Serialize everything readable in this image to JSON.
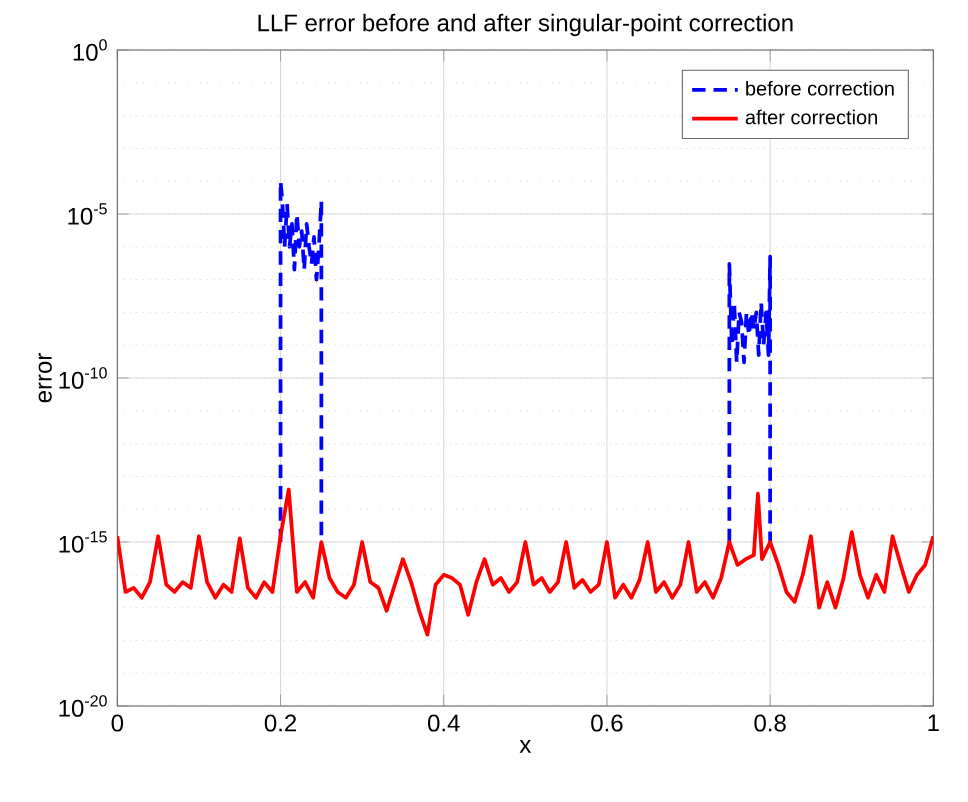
{
  "chart_data": {
    "type": "line",
    "title": "LLF error before and after singular-point correction",
    "xlabel": "x",
    "ylabel": "error",
    "log": "y",
    "grid": true,
    "legend": "top right",
    "xlim": [
      0,
      1
    ],
    "ylim": [
      1e-20,
      1
    ],
    "xticks": [
      0,
      0.2,
      0.4,
      0.6,
      0.8,
      1
    ],
    "yticks": [
      {
        "value": 1e-20,
        "label": "10$^{-20}$"
      },
      {
        "value": 1e-15,
        "label": "10$^{-15}$"
      },
      {
        "value": 1e-10,
        "label": "10$^{-10}$"
      },
      {
        "value": 1e-05,
        "label": "10$^{-5}$"
      },
      {
        "value": 1,
        "label": "10$^{0}$"
      }
    ],
    "series": [
      {
        "name": "before correction",
        "color": "#0000ff",
        "line_style": "dashed",
        "x": [
          0.2,
          0.2,
          0.202,
          0.205,
          0.208,
          0.211,
          0.214,
          0.217,
          0.22,
          0.223,
          0.226,
          0.229,
          0.232,
          0.235,
          0.238,
          0.241,
          0.244,
          0.247,
          0.25,
          0.25,
          0.5,
          0.75,
          0.75,
          0.753,
          0.756,
          0.759,
          0.762,
          0.765,
          0.768,
          0.771,
          0.774,
          0.777,
          0.78,
          0.783,
          0.786,
          0.789,
          0.792,
          0.795,
          0.798,
          0.8,
          0.8
        ],
        "values": [
          1e-15,
          0.0001,
          3e-05,
          1e-06,
          2e-05,
          1e-06,
          5e-06,
          2e-07,
          1e-05,
          1e-06,
          3e-06,
          2e-07,
          5e-06,
          1e-06,
          3e-07,
          2e-06,
          1e-07,
          1e-06,
          2.5e-05,
          1e-15,
          null,
          1e-15,
          3e-07,
          1e-09,
          2e-08,
          3e-10,
          1e-08,
          5e-09,
          3e-10,
          1e-08,
          2e-09,
          1e-08,
          3e-09,
          1e-08,
          5e-10,
          2e-08,
          1e-09,
          1e-08,
          5e-10,
          5e-07,
          1e-15
        ]
      },
      {
        "name": "after correction",
        "color": "#ff0000",
        "line_style": "solid",
        "x": [
          0,
          0.01,
          0.02,
          0.03,
          0.04,
          0.05,
          0.06,
          0.07,
          0.08,
          0.09,
          0.1,
          0.11,
          0.12,
          0.13,
          0.14,
          0.15,
          0.16,
          0.17,
          0.18,
          0.19,
          0.2,
          0.21,
          0.22,
          0.23,
          0.24,
          0.25,
          0.26,
          0.27,
          0.28,
          0.29,
          0.3,
          0.31,
          0.32,
          0.33,
          0.34,
          0.35,
          0.36,
          0.37,
          0.38,
          0.39,
          0.4,
          0.41,
          0.42,
          0.43,
          0.44,
          0.45,
          0.46,
          0.47,
          0.48,
          0.49,
          0.5,
          0.51,
          0.52,
          0.53,
          0.54,
          0.55,
          0.56,
          0.57,
          0.58,
          0.59,
          0.6,
          0.61,
          0.62,
          0.63,
          0.64,
          0.65,
          0.66,
          0.67,
          0.68,
          0.69,
          0.7,
          0.71,
          0.72,
          0.73,
          0.74,
          0.75,
          0.76,
          0.77,
          0.78,
          0.785,
          0.79,
          0.8,
          0.81,
          0.82,
          0.83,
          0.84,
          0.85,
          0.86,
          0.87,
          0.88,
          0.89,
          0.9,
          0.91,
          0.92,
          0.93,
          0.94,
          0.95,
          0.96,
          0.97,
          0.98,
          0.99,
          1
        ],
        "values": [
          1.5e-15,
          3e-17,
          4e-17,
          2e-17,
          6e-17,
          1.5e-15,
          5e-17,
          3e-17,
          6e-17,
          4e-17,
          1.5e-15,
          6e-17,
          2e-17,
          5e-17,
          3e-17,
          1.3e-15,
          4e-17,
          2e-17,
          6e-17,
          3e-17,
          1.5e-15,
          4e-14,
          3e-17,
          6e-17,
          2e-17,
          1e-15,
          8e-17,
          3e-17,
          2e-17,
          5e-17,
          1e-15,
          6e-17,
          4e-17,
          8e-18,
          5e-17,
          3e-16,
          6e-17,
          8e-18,
          1.5e-18,
          5e-17,
          1e-16,
          8e-17,
          5e-17,
          6e-18,
          6e-17,
          3e-16,
          5e-17,
          8e-17,
          3e-17,
          6e-17,
          1e-15,
          5e-17,
          8e-17,
          3e-17,
          6e-17,
          1e-15,
          4e-17,
          7e-17,
          3e-17,
          5e-17,
          1e-15,
          2e-17,
          5e-17,
          2e-17,
          7e-17,
          1e-15,
          3e-17,
          6e-17,
          2e-17,
          5e-17,
          1e-15,
          3e-17,
          6e-17,
          2e-17,
          8e-17,
          1e-15,
          2e-16,
          3e-16,
          4e-16,
          3e-14,
          3e-16,
          1e-15,
          2e-16,
          3e-17,
          1.5e-17,
          1e-16,
          1.5e-15,
          1e-17,
          6e-17,
          1e-17,
          8e-17,
          2e-15,
          1e-16,
          2e-17,
          1e-16,
          3e-17,
          1.5e-15,
          2e-16,
          3e-17,
          1e-16,
          2e-16,
          1.5e-15
        ]
      }
    ]
  }
}
